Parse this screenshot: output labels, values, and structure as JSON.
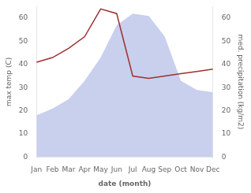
{
  "chart_data": {
    "type": "line",
    "xlabel": "date (month)",
    "ylabel": "max temp (C)",
    "y2label": "med. precipitation (kg/m2)",
    "categories": [
      "Jan",
      "Feb",
      "Mar",
      "Apr",
      "May",
      "Jun",
      "Jul",
      "Aug",
      "Sep",
      "Oct",
      "Nov",
      "Dec"
    ],
    "series": [
      {
        "type": "area",
        "color": "#c8d0ee",
        "axis": "y2",
        "values": [
          18,
          21,
          25,
          33,
          43,
          57,
          62,
          61,
          52,
          33,
          29,
          28
        ]
      },
      {
        "type": "line",
        "color": "#a03030",
        "values": [
          41,
          43,
          47,
          52,
          64,
          62,
          35,
          34,
          35,
          36,
          37,
          38
        ]
      }
    ],
    "ylim": [
      0,
      65
    ],
    "yticks": [
      0,
      10,
      20,
      30,
      40,
      50,
      60
    ],
    "y2lim": [
      0,
      65
    ],
    "y2ticks": [
      0,
      10,
      20,
      30,
      40,
      50,
      60
    ],
    "grid": false
  }
}
